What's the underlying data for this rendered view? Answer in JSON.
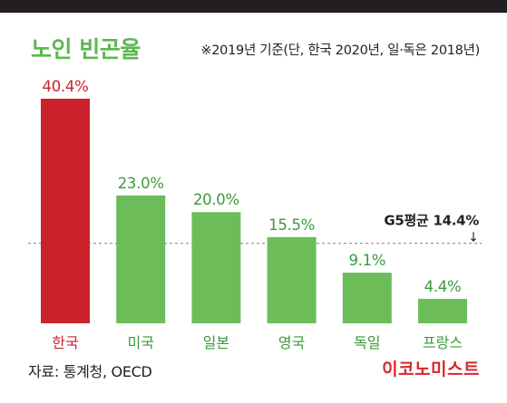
{
  "title": "노인 빈곤율",
  "note": "※2019년 기준(단, 한국 2020년, 일·독은 2018년)",
  "source": "자료: 통계청, OECD",
  "brand": "이코노미스트",
  "colors": {
    "highlight": "#c9222c",
    "bar": "#6cbd5a",
    "title": "#5cb84f",
    "label": "#3a9a3a",
    "brand": "#d7262e"
  },
  "chart_data": {
    "type": "bar",
    "categories": [
      "한국",
      "미국",
      "일본",
      "영국",
      "독일",
      "프랑스"
    ],
    "values": [
      40.4,
      23.0,
      20.0,
      15.5,
      9.1,
      4.4
    ],
    "value_labels": [
      "40.4%",
      "23.0%",
      "20.0%",
      "15.5%",
      "9.1%",
      "4.4%"
    ],
    "highlight_index": 0,
    "unit": "%",
    "ylim": [
      0,
      40.4
    ],
    "grid": false,
    "reference_line": {
      "label": "G5평균 14.4%",
      "value": 14.4,
      "marker": "↓"
    }
  }
}
